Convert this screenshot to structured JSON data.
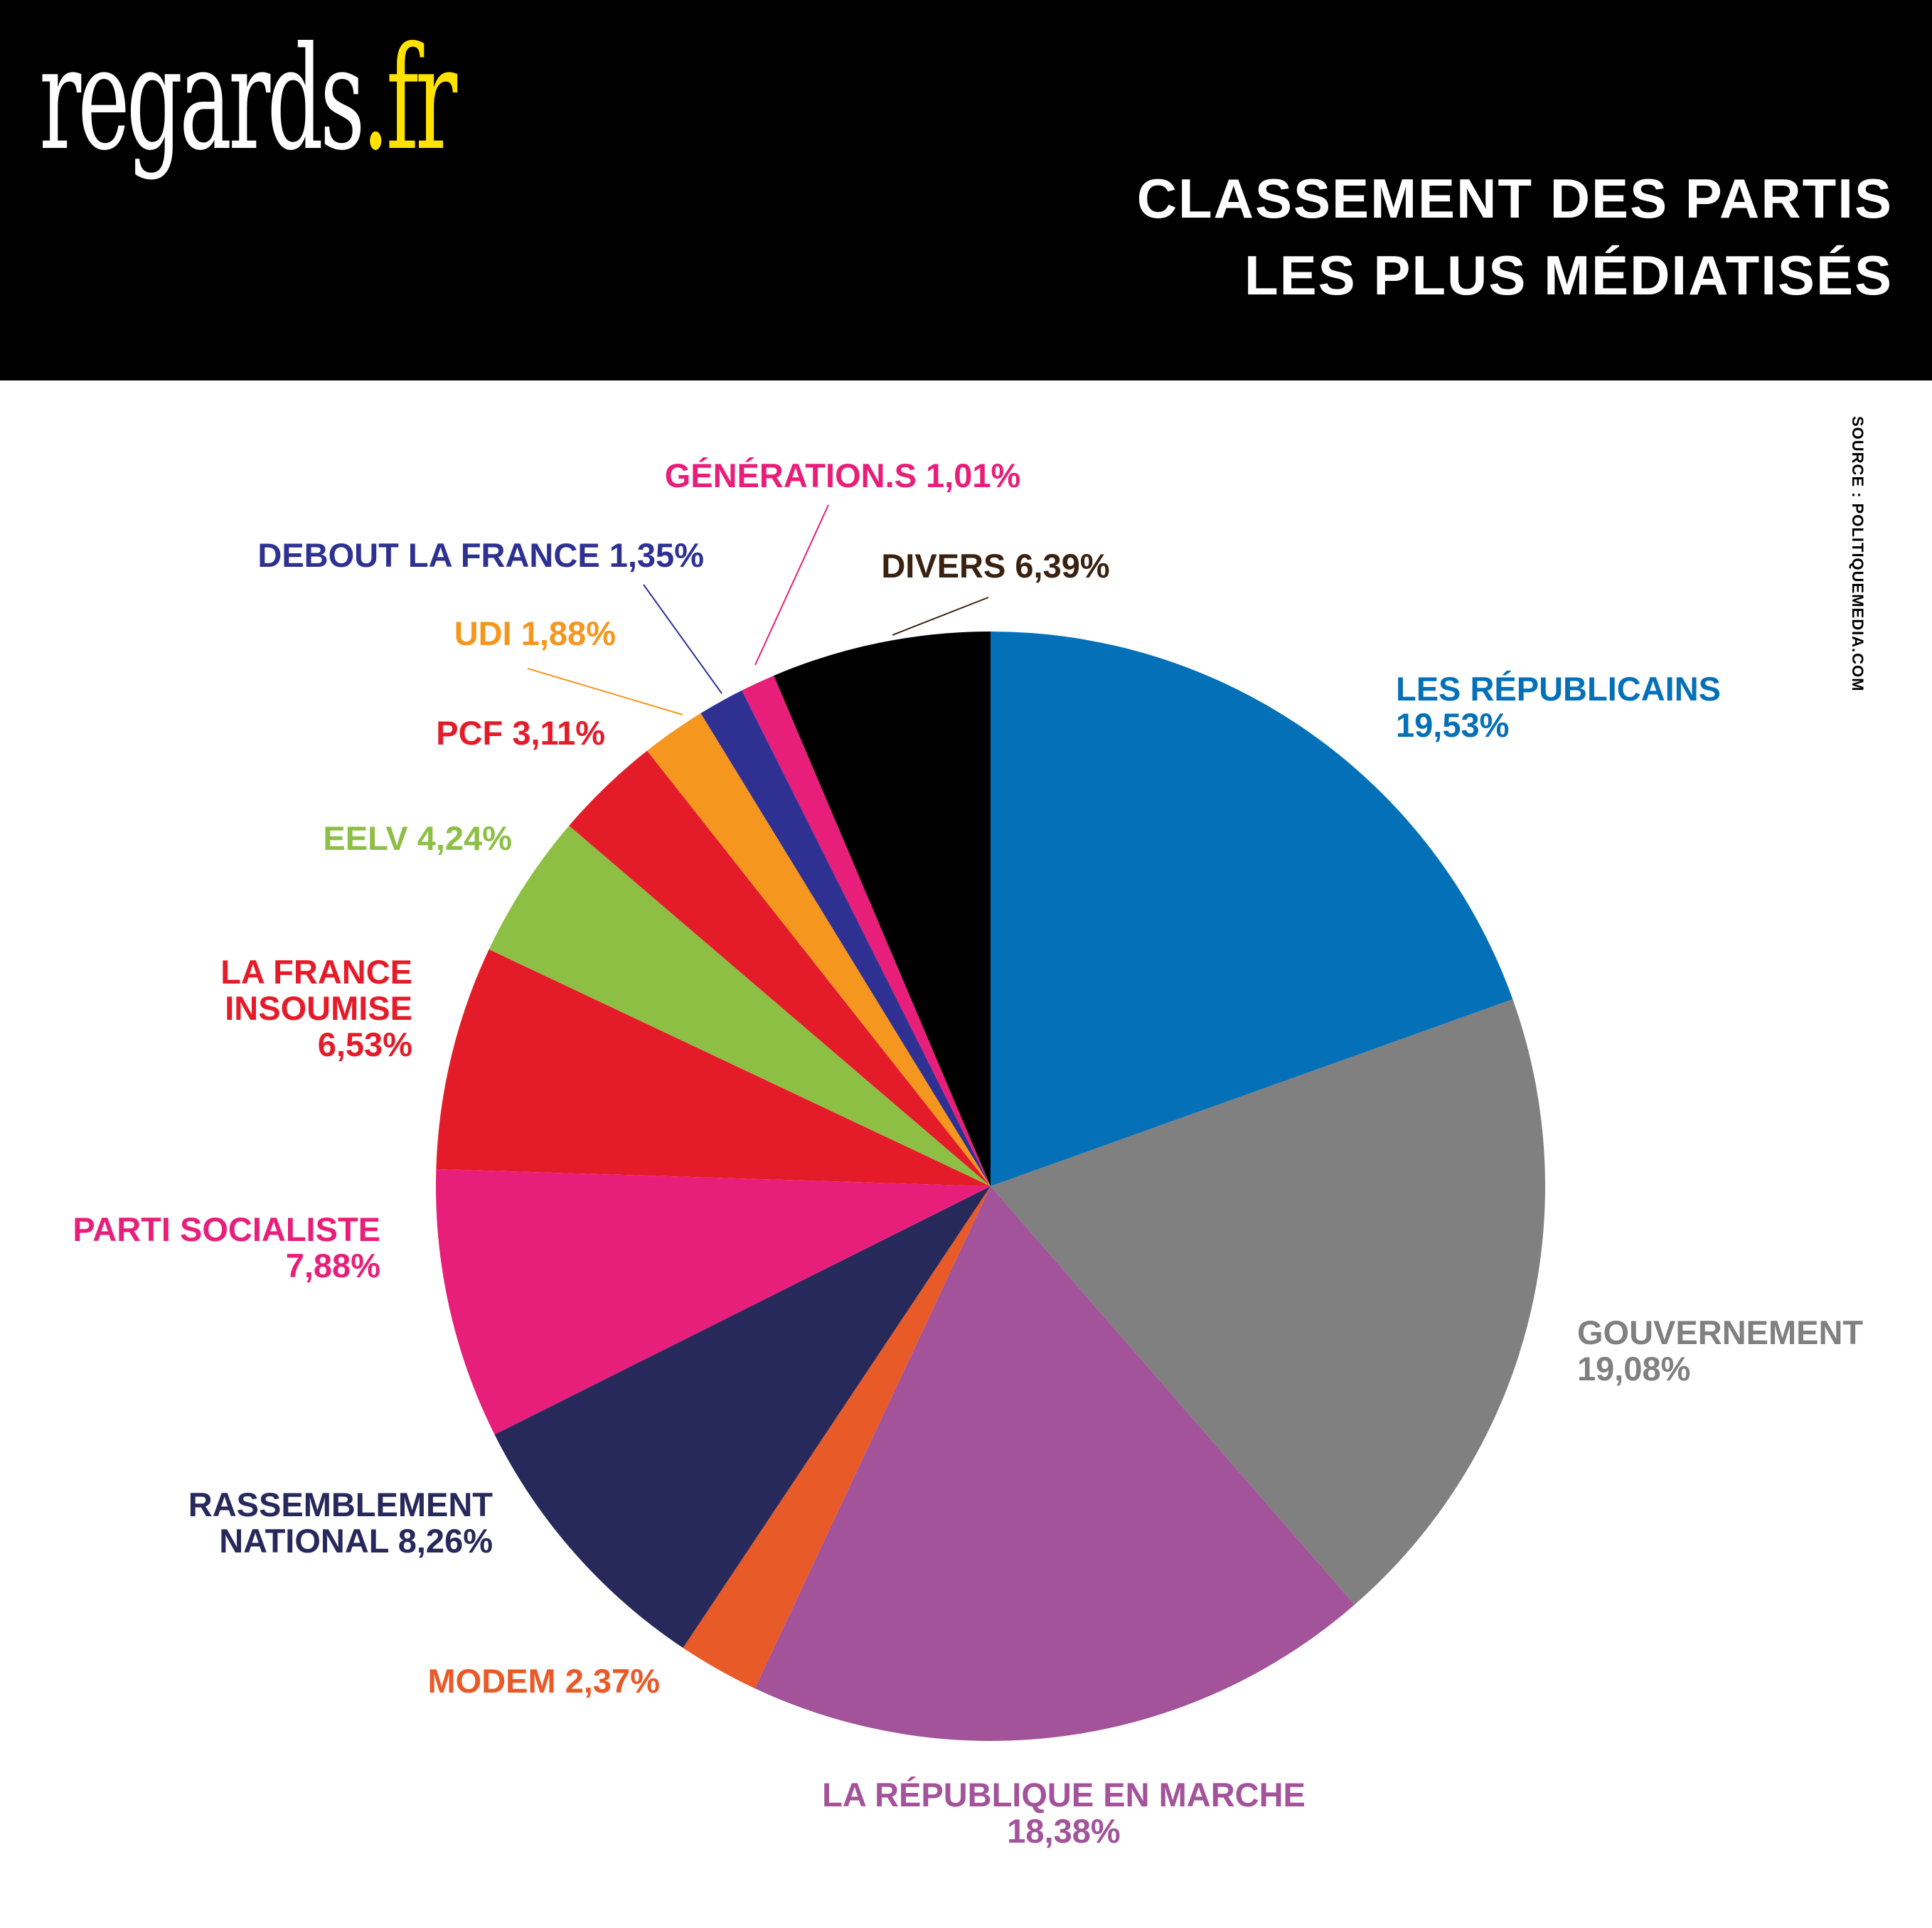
{
  "brand": {
    "name": "regards",
    "tld": ".fr"
  },
  "title": {
    "line1": "CLASSEMENT DES PARTIS",
    "line2": "LES PLUS MÉDIATISÉS"
  },
  "source": "SOURCE : POLITIQUEMEDIA.COM",
  "chart_data": {
    "type": "pie",
    "slices": [
      {
        "name": "LES RÉPUBLICAINS",
        "value": 19.53,
        "display": "19,53%",
        "color": "#0470b8"
      },
      {
        "name": "GOUVERNEMENT",
        "value": 19.08,
        "display": "19,08%",
        "color": "#808080"
      },
      {
        "name": "LA RÉPUBLIQUE EN MARCHE",
        "value": 18.38,
        "display": "18,38%",
        "color": "#a3539a"
      },
      {
        "name": "MODEM",
        "value": 2.37,
        "display": "2,37%",
        "color": "#e85a27"
      },
      {
        "name": "RASSEMBLEMENT NATIONAL",
        "value": 8.26,
        "display": "8,26%",
        "color": "#28295b"
      },
      {
        "name": "PARTI SOCIALISTE",
        "value": 7.88,
        "display": "7,88%",
        "color": "#e71f7a"
      },
      {
        "name": "LA FRANCE INSOUMISE",
        "value": 6.53,
        "display": "6,53%",
        "color": "#e41c29"
      },
      {
        "name": "EELV",
        "value": 4.24,
        "display": "4,24%",
        "color": "#8dbf45"
      },
      {
        "name": "PCF",
        "value": 3.11,
        "display": "3,11%",
        "color": "#e41c29"
      },
      {
        "name": "UDI",
        "value": 1.88,
        "display": "1,88%",
        "color": "#f5961e"
      },
      {
        "name": "DEBOUT LA FRANCE",
        "value": 1.35,
        "display": "1,35%",
        "color": "#2e3192"
      },
      {
        "name": "GÉNÉRATION.S",
        "value": 1.01,
        "display": "1,01%",
        "color": "#e71f7a"
      },
      {
        "name": "DIVERS",
        "value": 6.39,
        "display": "6,39%",
        "color": "#000000",
        "label_color": "#3a2211"
      }
    ]
  }
}
